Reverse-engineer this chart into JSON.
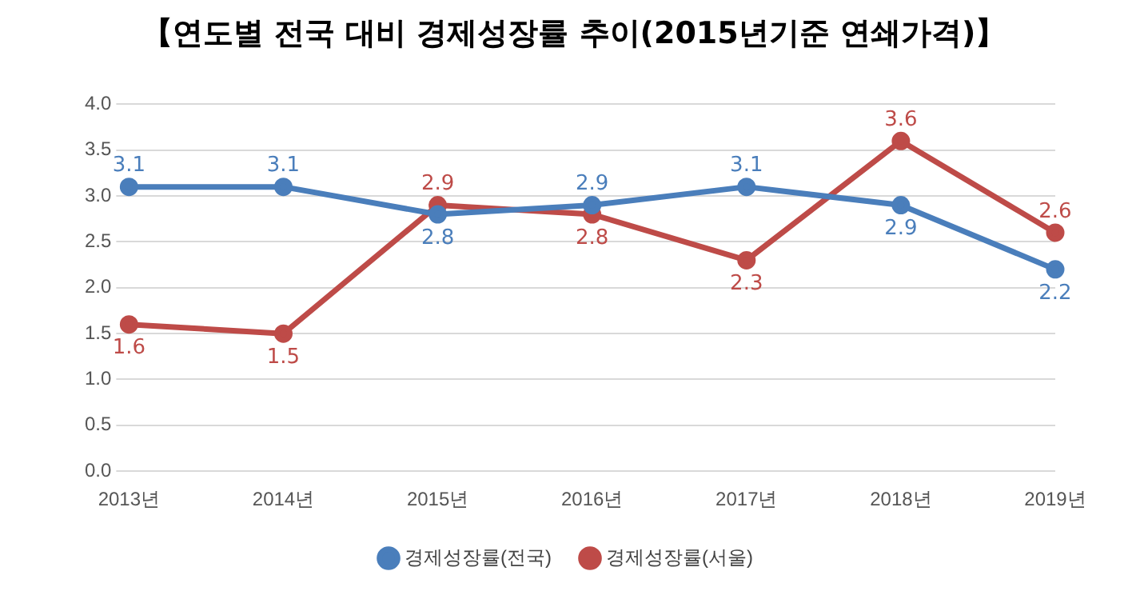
{
  "chart_data": {
    "type": "line",
    "title": "【연도별 전국 대비 경제성장률 추이(2015년기준 연쇄가격)】",
    "categories": [
      "2013년",
      "2014년",
      "2015년",
      "2016년",
      "2017년",
      "2018년",
      "2019년"
    ],
    "series": [
      {
        "name": "경제성장률(전국)",
        "color": "#4a7ebb",
        "values": [
          3.1,
          3.1,
          2.8,
          2.9,
          3.1,
          2.9,
          2.2
        ]
      },
      {
        "name": "경제성장률(서울)",
        "color": "#be4b48",
        "values": [
          1.6,
          1.5,
          2.9,
          2.8,
          2.3,
          3.6,
          2.6
        ]
      }
    ],
    "ylim": [
      0,
      4
    ],
    "yticks": [
      {
        "value": 0,
        "label": "0.0"
      },
      {
        "value": 0.5,
        "label": "0.5"
      },
      {
        "value": 1,
        "label": "1.0"
      },
      {
        "value": 1.5,
        "label": "1.5"
      },
      {
        "value": 2,
        "label": "2.0"
      },
      {
        "value": 2.5,
        "label": "2.5"
      },
      {
        "value": 3,
        "label": "3.0"
      },
      {
        "value": 3.5,
        "label": "3.5"
      },
      {
        "value": 4,
        "label": "4.0"
      }
    ],
    "grid": "y",
    "legend": "bottom",
    "marker": "circle",
    "line_style": "solid",
    "data_labels": true
  }
}
